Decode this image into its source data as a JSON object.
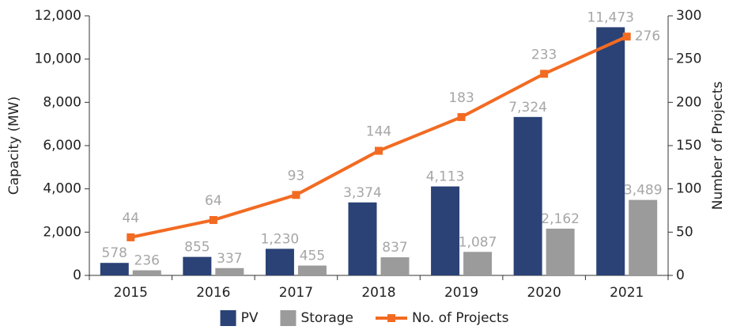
{
  "chart_data": {
    "type": "bar",
    "categories": [
      "2015",
      "2016",
      "2017",
      "2018",
      "2019",
      "2020",
      "2021"
    ],
    "y_label": "Capacity (MW)",
    "y2_label": "Number of Projects",
    "ylim": [
      0,
      12000
    ],
    "yticks": [
      0,
      {
        "value": 2000,
        "label": "2,000"
      },
      {
        "value": 4000,
        "label": "4,000"
      },
      {
        "value": 6000,
        "label": "6,000"
      },
      {
        "value": 8000,
        "label": "8,000"
      },
      {
        "value": 10000,
        "label": "10,000"
      },
      {
        "value": 12000,
        "label": "12,000"
      }
    ],
    "y2lim": [
      0,
      300
    ],
    "y2ticks": [
      0,
      50,
      100,
      150,
      200,
      250,
      300
    ],
    "legend": "bottom",
    "series": [
      {
        "name": "PV",
        "color": "#2a4276",
        "values": [
          578,
          855,
          1230,
          3374,
          4113,
          7324,
          11473
        ],
        "value_labels": [
          "578",
          "855",
          "1,230",
          "3,374",
          "4,113",
          "7,324",
          "11,473"
        ]
      },
      {
        "name": "Storage",
        "color": "#9b9b9b",
        "values": [
          236,
          337,
          455,
          837,
          1087,
          2162,
          3489
        ],
        "value_labels": [
          "236",
          "337",
          "455",
          "837",
          "1,087",
          "2,162",
          "3,489"
        ]
      },
      {
        "name": "No. of Projects",
        "type": "line",
        "axis": "y2",
        "color": "#f26b22",
        "values": [
          44,
          64,
          93,
          144,
          183,
          233,
          276
        ]
      }
    ]
  }
}
